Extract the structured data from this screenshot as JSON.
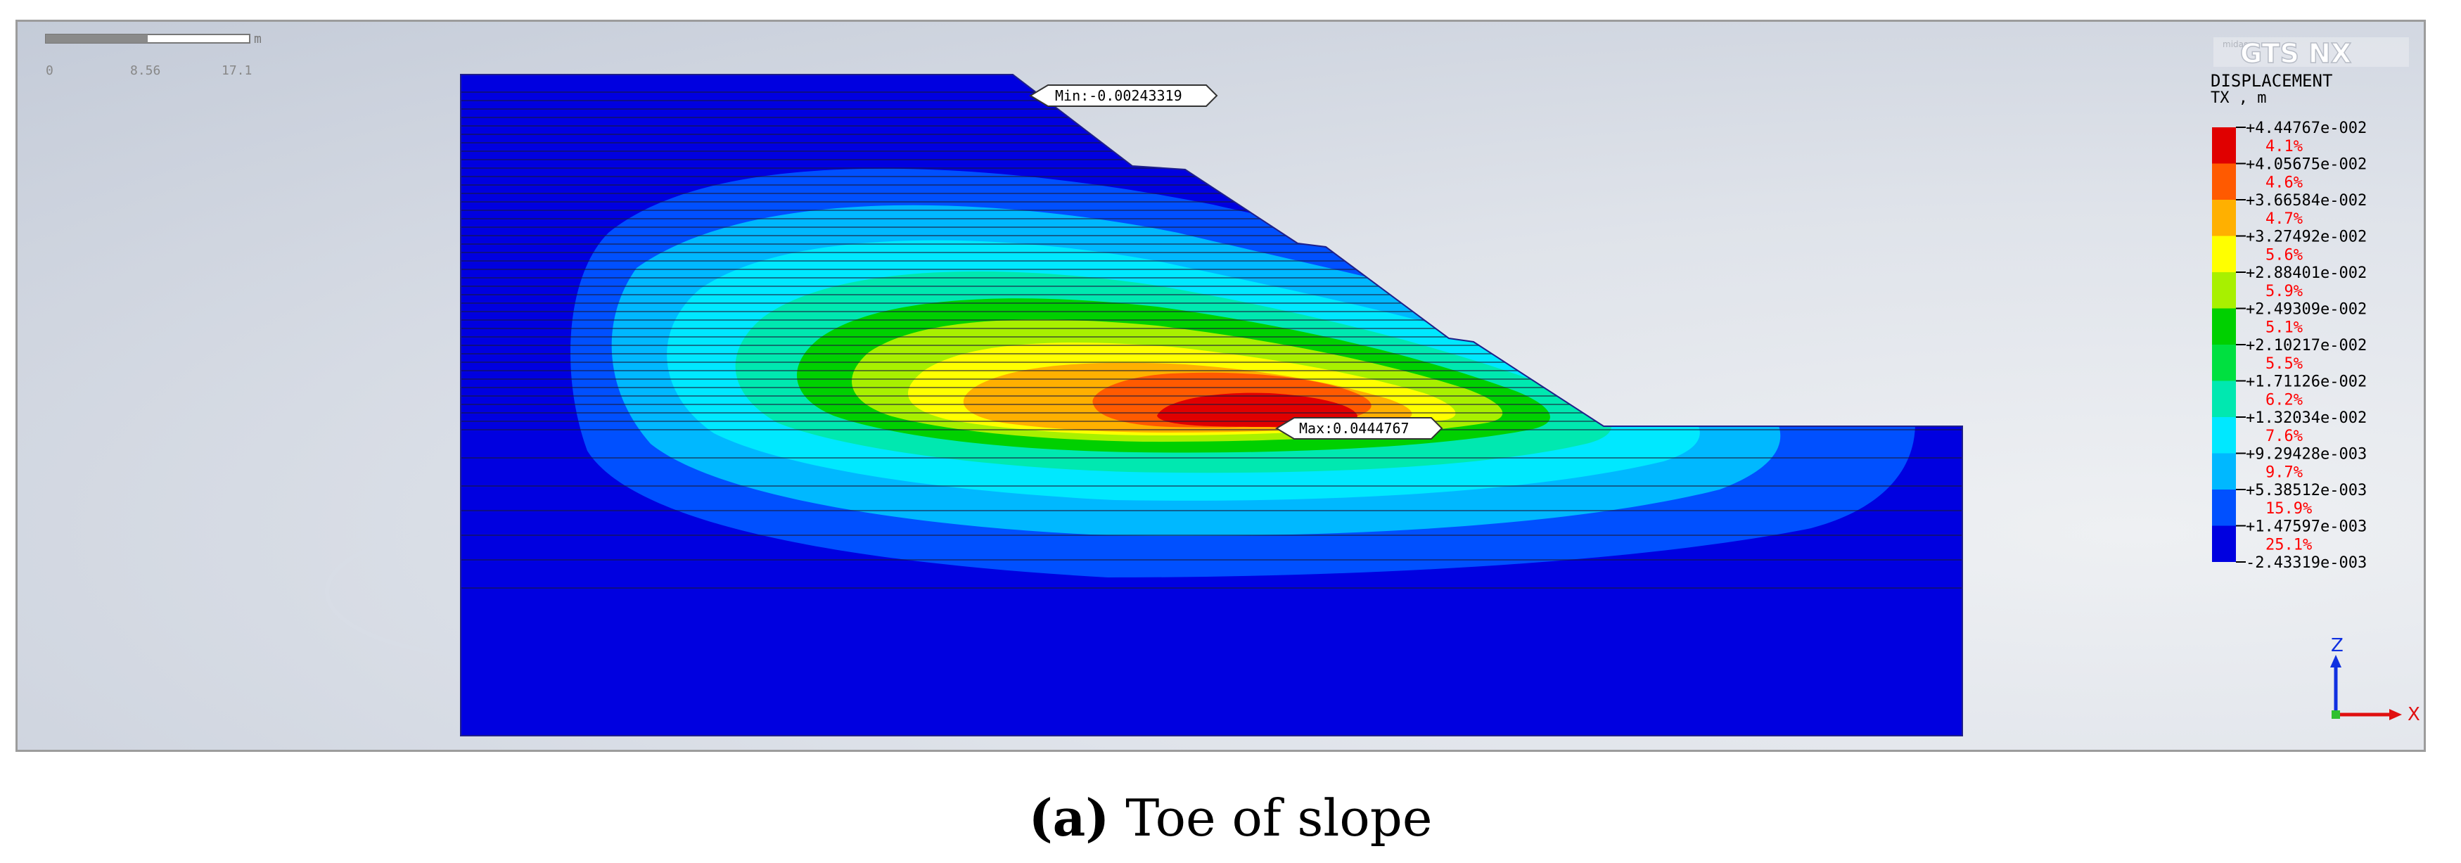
{
  "app": {
    "logo_text": "GTS NX",
    "logo_small": "midas"
  },
  "scale_bar": {
    "unit": "m",
    "ticks": [
      "0",
      "8.56",
      "17.1"
    ]
  },
  "labels": {
    "min_marker": "Min:-0.00243319",
    "max_marker": "Max:0.0444767"
  },
  "legend": {
    "title": "DISPLACEMENT",
    "subtitle": "TX , m",
    "bands": [
      {
        "pct": "4.1%",
        "color": "#e00000"
      },
      {
        "pct": "4.6%",
        "color": "#ff5a00"
      },
      {
        "pct": "4.7%",
        "color": "#ffb000"
      },
      {
        "pct": "5.6%",
        "color": "#ffff00"
      },
      {
        "pct": "5.9%",
        "color": "#a8f000"
      },
      {
        "pct": "5.1%",
        "color": "#00d000"
      },
      {
        "pct": "5.5%",
        "color": "#00e040"
      },
      {
        "pct": "6.2%",
        "color": "#00e8b0"
      },
      {
        "pct": "7.6%",
        "color": "#00e8ff"
      },
      {
        "pct": "9.7%",
        "color": "#00b8ff"
      },
      {
        "pct": "15.9%",
        "color": "#0050ff"
      },
      {
        "pct": "25.1%",
        "color": "#0000e0"
      }
    ],
    "values": [
      "+4.44767e-002",
      "+4.05675e-002",
      "+3.66584e-002",
      "+3.27492e-002",
      "+2.88401e-002",
      "+2.49309e-002",
      "+2.10217e-002",
      "+1.71126e-002",
      "+1.32034e-002",
      "+9.29428e-003",
      "+5.38512e-003",
      "+1.47597e-003",
      "-2.43319e-003"
    ]
  },
  "axes": {
    "z": "Z",
    "x": "X"
  },
  "contour_colors": [
    "#0000e0",
    "#0050ff",
    "#00b8ff",
    "#00e8ff",
    "#00e8b0",
    "#00d000",
    "#a8f000",
    "#ffff00",
    "#ffb000",
    "#ff5a00",
    "#e00000"
  ],
  "caption": {
    "letter": "(a)",
    "text": " Toe of slope"
  }
}
